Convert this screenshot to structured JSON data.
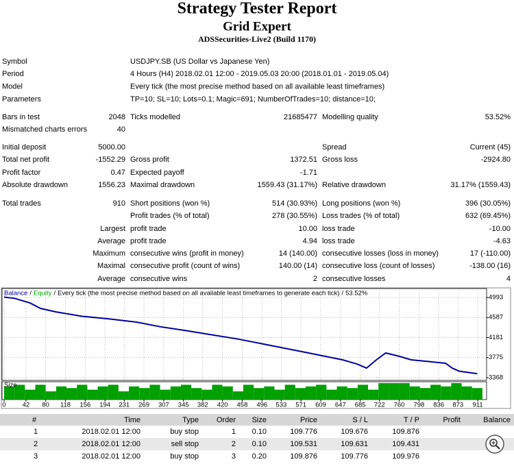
{
  "header": {
    "title": "Strategy Tester Report",
    "subtitle": "Grid Expert",
    "server": "ADSSecurities-Live2 (Build 1170)"
  },
  "info": [
    {
      "label": "Symbol",
      "value": "USDJPY.SB (US Dollar vs Japanese Yen)"
    },
    {
      "label": "Period",
      "value": "4 Hours (H4) 2018.02.01 12:00 - 2019.05.03 20:00 (2018.01.01 - 2019.05.04)"
    },
    {
      "label": "Model",
      "value": "Every tick (the most precise method based on all available least timeframes)"
    },
    {
      "label": "Parameters",
      "value": "TP=10; SL=10; Lots=0.1; Magic=691; NumberOfTrades=10; distance=10;"
    }
  ],
  "stats": {
    "rows": [
      [
        "Bars in test",
        "2048",
        "Ticks modelled",
        "21685477",
        "Modelling quality",
        "53.52%"
      ],
      [
        "Mismatched charts errors",
        "40",
        null,
        null,
        null,
        null
      ],
      [
        "Initial deposit",
        "5000.00",
        null,
        null,
        "Spread",
        "Current (45)"
      ],
      [
        "Total net profit",
        "-1552.29",
        "Gross profit",
        "1372.51",
        "Gross loss",
        "-2924.80"
      ],
      [
        "Profit factor",
        "0.47",
        "Expected payoff",
        "-1.71",
        null,
        null
      ],
      [
        "Absolute drawdown",
        "1556.23",
        "Maximal drawdown",
        "1559.43 (31.17%)",
        "Relative drawdown",
        "31.17% (1559.43)"
      ],
      [
        "Total trades",
        "910",
        "Short positions (won %)",
        "514 (30.93%)",
        "Long positions (won %)",
        "396 (30.05%)"
      ],
      [
        null,
        null,
        "Profit trades (% of total)",
        "278 (30.55%)",
        "Loss trades (% of total)",
        "632 (69.45%)"
      ],
      [
        null,
        "Largest",
        "profit trade",
        "10.00",
        "loss trade",
        "-10.00"
      ],
      [
        null,
        "Average",
        "profit trade",
        "4.94",
        "loss trade",
        "-4.63"
      ],
      [
        null,
        "Maximum",
        "consecutive wins (profit in money)",
        "14 (140.00)",
        "consecutive losses (loss in money)",
        "17 (-110.00)"
      ],
      [
        null,
        "Maximal",
        "consecutive profit (count of wins)",
        "140.00 (14)",
        "consecutive loss (count of losses)",
        "-138.00 (16)"
      ],
      [
        null,
        "Average",
        "consecutive wins",
        "2",
        "consecutive losses",
        "4"
      ]
    ]
  },
  "chart_data": [
    {
      "type": "line",
      "legend_separator": "/",
      "description": "Every tick (the most precise method based on all available least timeframes to generate each tick)",
      "quality": "53.52%",
      "x": [
        0,
        20,
        50,
        70,
        100,
        150,
        200,
        255,
        300,
        350,
        387,
        450,
        519,
        580,
        651,
        680,
        697,
        715,
        734,
        760,
        783,
        820,
        849,
        862,
        875,
        889,
        910
      ],
      "series": [
        {
          "name": "Balance",
          "color": "#00009c",
          "values": [
            5000,
            4975,
            4880,
            4770,
            4700,
            4610,
            4560,
            4493,
            4400,
            4320,
            4256,
            4150,
            4006,
            3880,
            3728,
            3640,
            3561,
            3720,
            3867,
            3800,
            3728,
            3690,
            3659,
            3561,
            3500,
            3478,
            3448
          ]
        },
        {
          "name": "Equity",
          "color": "#00a000",
          "values": [
            5000,
            4972,
            4876,
            4766,
            4697,
            4606,
            4556,
            4489,
            4396,
            4316,
            4252,
            4146,
            4002,
            3876,
            3724,
            3636,
            3556,
            3716,
            3863,
            3796,
            3724,
            3686,
            3655,
            3556,
            3496,
            3474,
            3448
          ]
        }
      ],
      "xlim": [
        0,
        928
      ],
      "ylim": [
        3312,
        5076
      ],
      "xticks": [
        0,
        42,
        80,
        118,
        156,
        194,
        231,
        269,
        307,
        345,
        382,
        420,
        458,
        496,
        533,
        571,
        609,
        647,
        685,
        722,
        760,
        798,
        836,
        873,
        911
      ],
      "yticks": [
        4993,
        4587,
        4181,
        3775,
        3368
      ],
      "grid": true
    },
    {
      "type": "bar",
      "title": "Size",
      "color": "#00a000",
      "x": [
        0,
        20,
        40,
        60,
        80,
        100,
        120,
        140,
        160,
        180,
        200,
        220,
        240,
        260,
        280,
        300,
        320,
        340,
        360,
        380,
        400,
        420,
        440,
        460,
        480,
        500,
        520,
        540,
        560,
        580,
        600,
        620,
        640,
        660,
        680,
        700,
        720,
        740,
        760,
        780,
        800,
        820,
        840,
        860,
        880,
        900
      ],
      "values": [
        0.8,
        0.9,
        0.6,
        0.9,
        0.5,
        0.8,
        0.7,
        0.9,
        0.6,
        0.8,
        0.9,
        0.5,
        0.8,
        0.7,
        0.9,
        0.6,
        0.8,
        0.9,
        0.7,
        0.6,
        0.9,
        0.8,
        0.5,
        0.9,
        0.7,
        0.8,
        0.6,
        0.9,
        0.7,
        0.8,
        0.9,
        0.6,
        0.8,
        0.7,
        0.9,
        0.6,
        1.0,
        1.0,
        1.0,
        0.8,
        0.7,
        0.9,
        0.8,
        1.0,
        0.8,
        0.7
      ],
      "xlim": [
        0,
        928
      ],
      "ylim": [
        0,
        1
      ]
    }
  ],
  "table": {
    "header": [
      "#",
      "Time",
      "Type",
      "Order",
      "Size",
      "Price",
      "S / L",
      "T / P",
      "Profit",
      "Balance"
    ],
    "rows": [
      [
        "1",
        "2018.02.01 12:00",
        "buy stop",
        "1",
        "0.10",
        "109.776",
        "109.676",
        "109.876"
      ],
      [
        "2",
        "2018.02.01 12:00",
        "sell stop",
        "2",
        "0.10",
        "109.531",
        "109.631",
        "109.431"
      ],
      [
        "3",
        "2018.02.01 12:00",
        "buy stop",
        "3",
        "0.20",
        "109.876",
        "109.776",
        "109.976"
      ]
    ]
  }
}
